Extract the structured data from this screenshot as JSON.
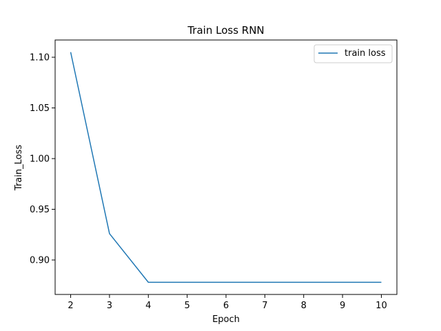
{
  "chart_data": {
    "type": "line",
    "title": "Train Loss RNN",
    "xlabel": "Epoch",
    "ylabel": "Train_Loss",
    "xlim": [
      1.6,
      10.4
    ],
    "ylim": [
      0.866,
      1.117
    ],
    "x_ticks": [
      2,
      3,
      4,
      5,
      6,
      7,
      8,
      9,
      10
    ],
    "y_ticks": [
      0.9,
      0.95,
      1.0,
      1.05,
      1.1
    ],
    "x_tick_labels": [
      "2",
      "3",
      "4",
      "5",
      "6",
      "7",
      "8",
      "9",
      "10"
    ],
    "y_tick_labels": [
      "0.90",
      "0.95",
      "1.00",
      "1.05",
      "1.10"
    ],
    "grid": false,
    "legend_position": "top-right",
    "series": [
      {
        "name": "train loss",
        "color": "#1f77b4",
        "x": [
          2,
          3,
          4,
          5,
          6,
          7,
          8,
          9,
          10
        ],
        "y": [
          1.105,
          0.926,
          0.878,
          0.878,
          0.878,
          0.878,
          0.878,
          0.878,
          0.878
        ]
      }
    ]
  }
}
